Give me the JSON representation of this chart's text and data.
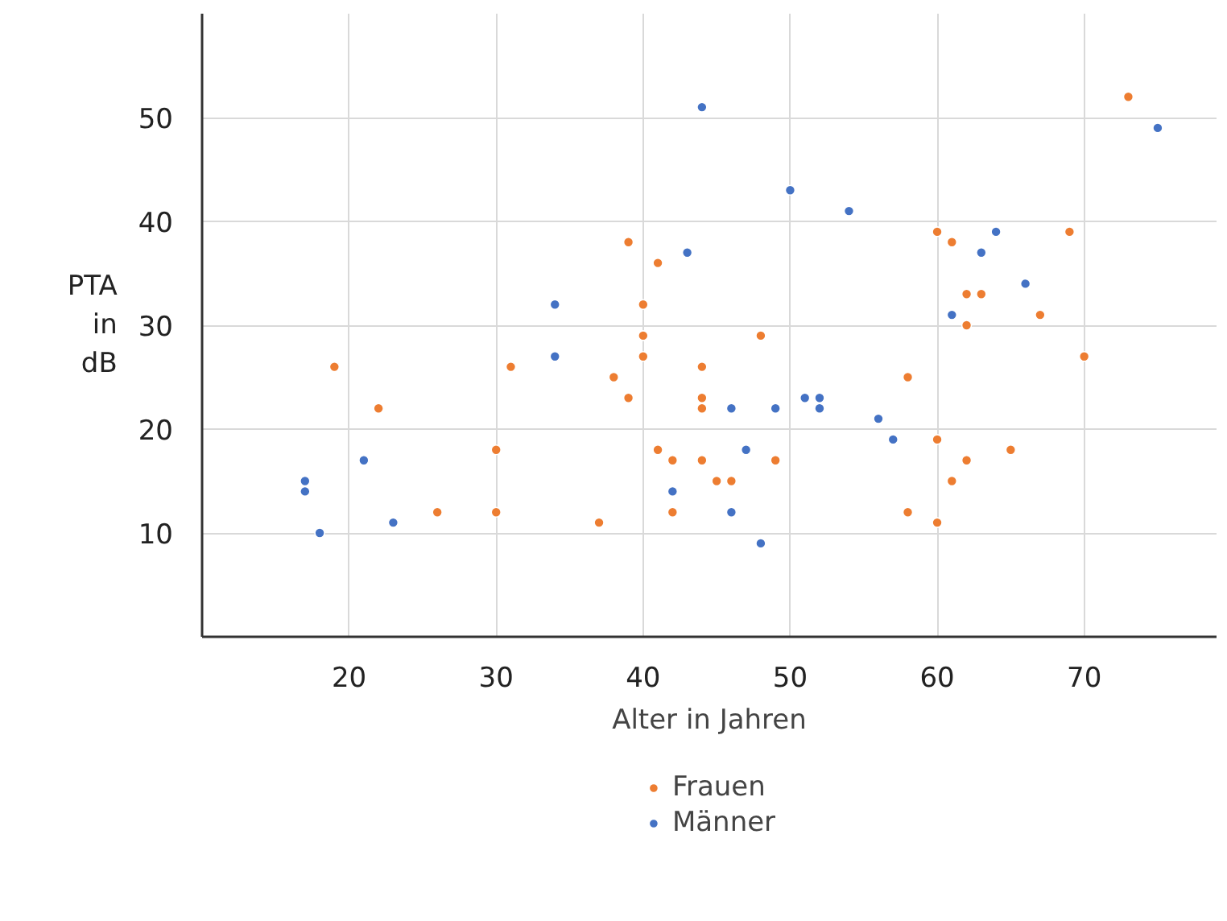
{
  "chart_data": {
    "type": "scatter",
    "xlabel": "Alter in Jahren",
    "ylabel": "PTA in dB",
    "xlim": [
      10,
      79
    ],
    "ylim": [
      0,
      60
    ],
    "xticks": [
      20,
      30,
      40,
      50,
      60,
      70
    ],
    "yticks": [
      10,
      20,
      30,
      40,
      50
    ],
    "grid": true,
    "legend": "bottom",
    "marker": "circle",
    "series": [
      {
        "name": "Frauen",
        "color": "#ed7d31",
        "x": [
          19,
          22,
          26,
          30,
          30,
          31,
          37,
          38,
          39,
          39,
          40,
          40,
          40,
          41,
          41,
          42,
          42,
          44,
          44,
          44,
          44,
          45,
          46,
          48,
          49,
          58,
          58,
          60,
          60,
          60,
          61,
          61,
          62,
          62,
          62,
          63,
          65,
          67,
          69,
          70,
          73
        ],
        "values": [
          26,
          22,
          12,
          18,
          12,
          26,
          11,
          25,
          38,
          23,
          32,
          29,
          27,
          36,
          18,
          17,
          12,
          26,
          23,
          22,
          17,
          15,
          15,
          29,
          17,
          25,
          12,
          39,
          19,
          11,
          38,
          15,
          33,
          30,
          17,
          33,
          18,
          31,
          39,
          27,
          52
        ]
      },
      {
        "name": "Männer",
        "color": "#4472c4",
        "x": [
          17,
          17,
          18,
          21,
          23,
          34,
          34,
          42,
          43,
          44,
          46,
          46,
          47,
          48,
          49,
          50,
          51,
          52,
          52,
          54,
          56,
          57,
          61,
          63,
          64,
          66,
          75
        ],
        "values": [
          15,
          14,
          10,
          17,
          11,
          32,
          27,
          14,
          37,
          51,
          22,
          12,
          18,
          9,
          22,
          43,
          23,
          23,
          22,
          41,
          21,
          19,
          31,
          37,
          39,
          34,
          49
        ]
      }
    ]
  }
}
